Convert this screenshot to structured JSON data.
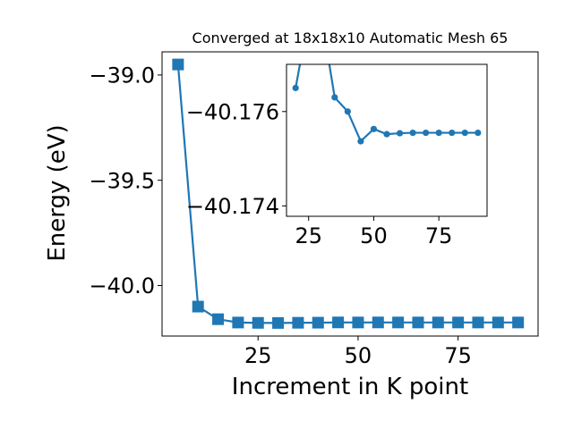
{
  "colors": {
    "series": "#1f77b4",
    "axes": "#000000",
    "background": "#ffffff"
  },
  "chart_data": [
    {
      "type": "line",
      "title": "Converged at 18x18x10 Automatic Mesh 65",
      "xlabel": "Increment in K point",
      "ylabel": "Energy (eV)",
      "xlim": [
        1,
        95
      ],
      "ylim": [
        -40.24,
        -38.89
      ],
      "xticks": [
        25,
        50,
        75
      ],
      "yticks": [
        -39.0,
        -39.5,
        -40.0
      ],
      "xtick_labels": [
        "25",
        "50",
        "75"
      ],
      "ytick_labels": [
        "−39.0",
        "−39.5",
        "−40.0"
      ],
      "marker": "square",
      "grid": false,
      "x": [
        5,
        10,
        15,
        20,
        25,
        30,
        35,
        40,
        45,
        50,
        55,
        60,
        65,
        70,
        75,
        80,
        85,
        90
      ],
      "y": [
        -38.95,
        -40.1,
        -40.16,
        -40.1758,
        -40.1774,
        -40.1778,
        -40.1769,
        -40.1765,
        -40.1753,
        -40.1756,
        -40.1754,
        -40.1755,
        -40.1756,
        -40.1756,
        -40.1756,
        -40.1756,
        -40.1756,
        -40.1756
      ]
    },
    {
      "type": "line",
      "title": "",
      "xlabel": "",
      "ylabel": "",
      "xlim": [
        16.5,
        93.5
      ],
      "ylim": [
        -40.17378,
        -40.177
      ],
      "xticks": [
        25,
        50,
        75
      ],
      "yticks": [
        -40.176,
        -40.174
      ],
      "xtick_labels": [
        "25",
        "50",
        "75"
      ],
      "ytick_labels": [
        "−40.176",
        "−40.174"
      ],
      "marker": "circle",
      "grid": false,
      "x": [
        20,
        25,
        30,
        35,
        40,
        45,
        50,
        55,
        60,
        65,
        70,
        75,
        80,
        85,
        90
      ],
      "y": [
        -40.1765,
        -40.178,
        -40.178,
        -40.1763,
        -40.176,
        -40.17537,
        -40.17563,
        -40.17552,
        -40.17554,
        -40.17555,
        -40.17555,
        -40.17555,
        -40.17555,
        -40.17555,
        -40.17555
      ]
    }
  ]
}
